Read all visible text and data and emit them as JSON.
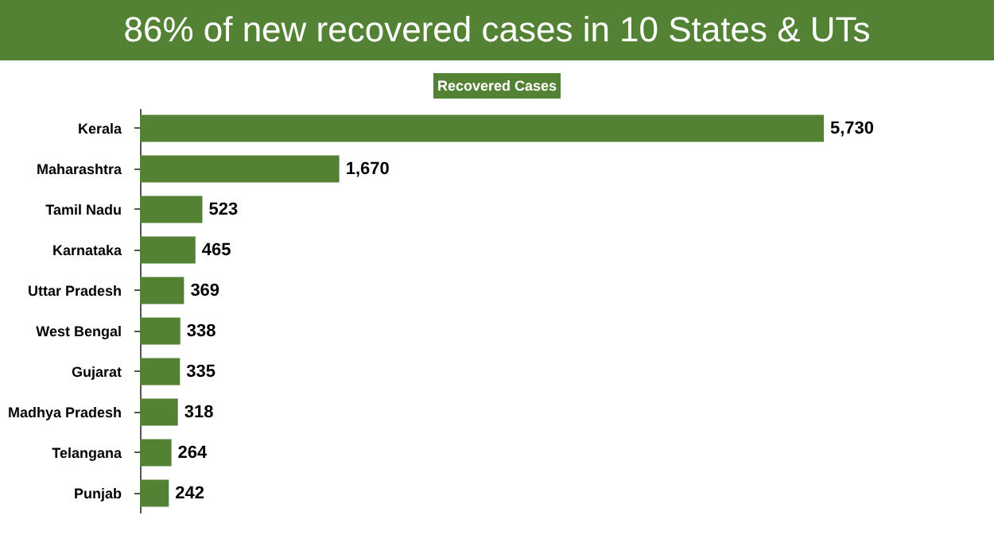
{
  "chart_data": {
    "type": "bar",
    "orientation": "horizontal",
    "title": "86% of new recovered cases in 10 States & UTs",
    "categories": [
      "Kerala",
      "Maharashtra",
      "Tamil Nadu",
      "Karnataka",
      "Uttar Pradesh",
      "West Bengal",
      "Gujarat",
      "Madhya Pradesh",
      "Telangana",
      "Punjab"
    ],
    "series": [
      {
        "name": "Recovered Cases",
        "color": "#548235",
        "values": [
          5730,
          1670,
          523,
          465,
          369,
          338,
          335,
          318,
          264,
          242
        ],
        "value_labels": [
          "5,730",
          "1,670",
          "523",
          "465",
          "369",
          "338",
          "335",
          "318",
          "264",
          "242"
        ]
      }
    ],
    "legend": "top",
    "grid": false
  }
}
